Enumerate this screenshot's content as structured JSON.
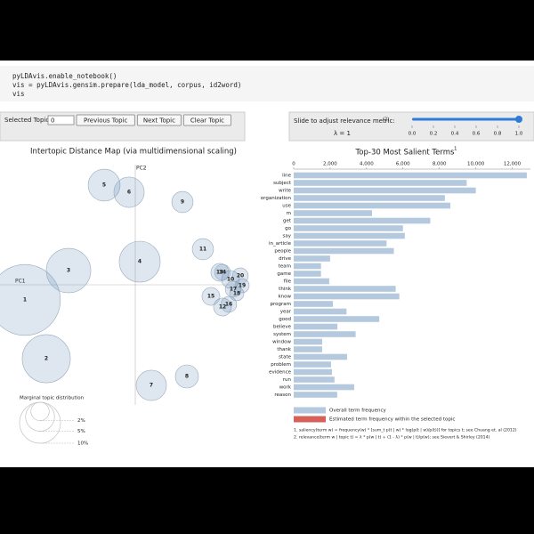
{
  "code": [
    "pyLDAvis.enable_notebook()",
    "vis = pyLDAvis.gensim.prepare(lda_model, corpus, id2word)",
    "vis"
  ],
  "controls": {
    "selected_topic_label": "Selected Topic:",
    "selected_topic": "0",
    "buttons": [
      "Previous Topic",
      "Next Topic",
      "Clear Topic"
    ],
    "slider_label": "Slide to adjust relevance metric:",
    "slider_note": "(2)",
    "lambda_label": "λ = 1",
    "lambda": 1,
    "slider_lim": [
      0,
      1
    ],
    "slider_ticks": [
      {
        "value": 0,
        "label": "0.0"
      },
      0.2,
      0.4,
      0.6,
      0.8,
      {
        "value": 1,
        "label": "1.0"
      }
    ]
  },
  "intertopic_map": {
    "title": "Intertopic Distance Map (via multidimensional scaling)",
    "x_axis_label": "PC1",
    "y_axis_label": "PC2",
    "topics": [
      {
        "label": "1",
        "pc1": -1.24,
        "pc2": -0.17,
        "size": 30
      },
      {
        "label": "2",
        "pc1": -1.0,
        "pc2": -0.83,
        "size": 13.8
      },
      {
        "label": "3",
        "pc1": -0.75,
        "pc2": 0.16,
        "size": 11.8
      },
      {
        "label": "4",
        "pc1": 0.05,
        "pc2": 0.26,
        "size": 10
      },
      {
        "label": "5",
        "pc1": -0.35,
        "pc2": 1.12,
        "size": 6.1
      },
      {
        "label": "6",
        "pc1": -0.07,
        "pc2": 1.04,
        "size": 5.5
      },
      {
        "label": "7",
        "pc1": 0.18,
        "pc2": -1.13,
        "size": 5.5
      },
      {
        "label": "8",
        "pc1": 0.58,
        "pc2": -1.03,
        "size": 3.2
      },
      {
        "label": "9",
        "pc1": 0.53,
        "pc2": 0.93,
        "size": 2.7
      },
      {
        "label": "10",
        "pc1": 1.07,
        "pc2": 0.06,
        "size": 1.9
      },
      {
        "label": "11",
        "pc1": 0.76,
        "pc2": 0.4,
        "size": 2.7
      },
      {
        "label": "12",
        "pc1": 0.98,
        "pc2": -0.25,
        "size": 1.9
      },
      {
        "label": "13",
        "pc1": 0.95,
        "pc2": 0.14,
        "size": 1.9
      },
      {
        "label": "14",
        "pc1": 0.98,
        "pc2": 0.14,
        "size": 1.5
      },
      {
        "label": "15",
        "pc1": 0.85,
        "pc2": -0.13,
        "size": 1.9
      },
      {
        "label": "16",
        "pc1": 1.05,
        "pc2": -0.22,
        "size": 1.5
      },
      {
        "label": "17",
        "pc1": 1.1,
        "pc2": -0.05,
        "size": 1.5
      },
      {
        "label": "18",
        "pc1": 1.14,
        "pc2": -0.1,
        "size": 1.2
      },
      {
        "label": "19",
        "pc1": 1.2,
        "pc2": -0.01,
        "size": 1.2
      },
      {
        "label": "20",
        "pc1": 1.18,
        "pc2": 0.1,
        "size": 1.5
      }
    ],
    "marginal_legend": {
      "title": "Marginal topic distribution",
      "sizes": [
        {
          "value": 2,
          "label": "2%"
        },
        {
          "value": 5,
          "label": "5%"
        },
        {
          "value": 10,
          "label": "10%"
        }
      ]
    }
  },
  "salient_terms": {
    "title": "Top-30 Most Salient Terms",
    "title_note": "1",
    "color": "#b4c9dd",
    "terms": [
      "line",
      "subject",
      "write",
      "organization",
      "use",
      "m",
      "get",
      "go",
      "say",
      "in_article",
      "people",
      "drive",
      "team",
      "game",
      "file",
      "think",
      "know",
      "program",
      "year",
      "good",
      "believe",
      "system",
      "window",
      "thank",
      "state",
      "problem",
      "evidence",
      "run",
      "work",
      "reason"
    ],
    "values": [
      12800,
      9500,
      10000,
      8300,
      8600,
      4300,
      7500,
      6000,
      6100,
      5100,
      5500,
      2000,
      1500,
      1500,
      1950,
      5600,
      5800,
      2150,
      2900,
      4700,
      2400,
      3400,
      1560,
      1560,
      2930,
      2050,
      2100,
      2240,
      3320,
      2390
    ],
    "xlim": [
      0,
      13000
    ],
    "xticks": [
      0,
      {
        "value": 2000,
        "label": "2,000"
      },
      {
        "value": 4000,
        "label": "4,000"
      },
      {
        "value": 6000,
        "label": "6,000"
      },
      {
        "value": 8000,
        "label": "8,000"
      },
      {
        "value": 10000,
        "label": "10,000"
      },
      {
        "value": 12000,
        "label": "12,000"
      }
    ],
    "legend": [
      {
        "label": "Overall term frequency",
        "color": "#b4c9dd"
      },
      {
        "label": "Estimated term frequency within the selected topic",
        "color": "#d6605a"
      }
    ],
    "footnotes": [
      "1. saliency(term w) = frequency(w) * [sum_t p(t | w) * log(p(t | w)/p(t))] for topics t; see Chuang et. al (2012)",
      "2. relevance(term w | topic t) = λ * p(w | t) + (1 - λ) * p(w | t)/p(w); see Sievert & Shirley (2014)"
    ]
  }
}
